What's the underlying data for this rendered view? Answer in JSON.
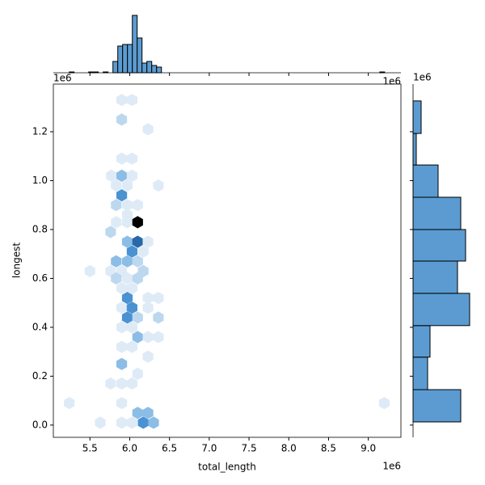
{
  "chart_data": [
    {
      "type": "hexbin",
      "xlabel": "total_length",
      "ylabel": "longest",
      "x_offset_label": "1e6",
      "y_offset_label": "1e6",
      "xlim": [
        5.04,
        9.41
      ],
      "ylim": [
        -0.05,
        1.395
      ],
      "xticks": [
        5.5,
        {
          "value": 6,
          "label": "6.0"
        },
        6.5,
        {
          "value": 7,
          "label": "7.0"
        },
        7.5,
        {
          "value": 8,
          "label": "8.0"
        },
        8.5,
        {
          "value": 9,
          "label": "9.0"
        }
      ],
      "yticks": [
        {
          "value": 0,
          "label": "0.0"
        },
        0.2,
        0.4,
        0.6,
        0.8,
        {
          "value": 1,
          "label": "1.0"
        },
        1.2
      ],
      "cmap": [
        "#deebf7",
        "#bcd8ef",
        "#8cbde6",
        "#4a92d2",
        "#2868a8",
        "#000000"
      ],
      "x": [
        5.9,
        6.03,
        5.9,
        6.23,
        5.9,
        6.03,
        5.77,
        5.9,
        6.03,
        5.83,
        5.97,
        6.36,
        5.9,
        5.83,
        5.97,
        6.1,
        5.97,
        5.83,
        5.97,
        6.1,
        5.76,
        5.97,
        6.1,
        6.23,
        6.03,
        6.17,
        5.83,
        5.97,
        6.1,
        5.5,
        5.76,
        5.9,
        6.17,
        5.83,
        5.97,
        6.1,
        5.9,
        6.03,
        5.97,
        6.23,
        6.36,
        5.9,
        6.03,
        6.23,
        5.97,
        6.1,
        6.36,
        5.9,
        6.03,
        6.1,
        6.23,
        6.36,
        5.9,
        6.03,
        6.23,
        5.9,
        6.1,
        5.76,
        5.9,
        6.03,
        5.24,
        5.9,
        9.2,
        6.1,
        6.23,
        5.63,
        5.9,
        6.03,
        6.17,
        6.3
      ],
      "y": [
        1.33,
        1.33,
        1.25,
        1.21,
        1.09,
        1.09,
        1.02,
        1.02,
        1.02,
        0.98,
        0.98,
        0.98,
        0.94,
        0.9,
        0.9,
        0.9,
        0.86,
        0.83,
        0.83,
        0.83,
        0.79,
        0.75,
        0.75,
        0.75,
        0.71,
        0.71,
        0.67,
        0.67,
        0.67,
        0.63,
        0.63,
        0.63,
        0.63,
        0.6,
        0.6,
        0.6,
        0.56,
        0.56,
        0.52,
        0.52,
        0.52,
        0.48,
        0.48,
        0.48,
        0.44,
        0.44,
        0.44,
        0.4,
        0.4,
        0.36,
        0.36,
        0.36,
        0.32,
        0.32,
        0.28,
        0.25,
        0.21,
        0.17,
        0.17,
        0.17,
        0.09,
        0.09,
        0.09,
        0.05,
        0.05,
        0.01,
        0.01,
        0.01,
        0.01,
        0.01
      ],
      "counts": [
        1,
        1,
        2,
        1,
        1,
        1,
        1,
        3,
        1,
        1,
        1,
        1,
        4,
        2,
        1,
        1,
        1,
        1,
        1,
        6,
        2,
        3,
        5,
        1,
        4,
        1,
        3,
        3,
        2,
        1,
        1,
        1,
        2,
        2,
        1,
        2,
        1,
        1,
        4,
        1,
        1,
        1,
        4,
        1,
        4,
        2,
        2,
        1,
        1,
        3,
        1,
        1,
        1,
        1,
        1,
        3,
        1,
        1,
        1,
        1,
        1,
        1,
        1,
        3,
        3,
        1,
        1,
        1,
        4,
        3
      ]
    },
    {
      "type": "histogram",
      "color": "#5b9bd1",
      "ylim": [
        0,
        72
      ],
      "bins": [
        5.24,
        5.301,
        5.362,
        5.423,
        5.484,
        5.545,
        5.606,
        5.667,
        5.728,
        5.789,
        5.85,
        5.911,
        5.972,
        6.033,
        6.094,
        6.155,
        6.216,
        6.277,
        6.338,
        6.399,
        6.46,
        6.521,
        6.582,
        6.643,
        6.704,
        6.765,
        6.826,
        6.887,
        6.948,
        7.009,
        7.07,
        7.131,
        7.192,
        7.253,
        7.314,
        7.375,
        7.436,
        7.497,
        7.558,
        7.619,
        7.68,
        7.741,
        7.802,
        7.863,
        7.924,
        7.985,
        8.046,
        8.107,
        8.168,
        8.229,
        8.29,
        8.351,
        8.412,
        8.473,
        8.534,
        8.595,
        8.656,
        8.717,
        8.778,
        8.839,
        8.9,
        8.961,
        9.022,
        9.083,
        9.144,
        9.205
      ],
      "counts": [
        1,
        0,
        0,
        0,
        1,
        1,
        0,
        1,
        0,
        14,
        33,
        35,
        35,
        71,
        43,
        12,
        14,
        9,
        7,
        0,
        0,
        0,
        0,
        0,
        0,
        0,
        0,
        0,
        0,
        0,
        0,
        0,
        0,
        0,
        0,
        0,
        0,
        0,
        0,
        0,
        0,
        0,
        0,
        0,
        0,
        0,
        0,
        0,
        0,
        0,
        0,
        0,
        0,
        0,
        0,
        0,
        0,
        0,
        0,
        0,
        0,
        0,
        0,
        0,
        1
      ]
    },
    {
      "type": "histogram",
      "orientation": "horizontal",
      "color": "#5b9bd1",
      "xlim": [
        0,
        72
      ],
      "bins": [
        0.013,
        0.145,
        0.278,
        0.407,
        0.539,
        0.671,
        0.8,
        0.932,
        1.064,
        1.193,
        1.326
      ],
      "counts": [
        59,
        18,
        21,
        70,
        55,
        65,
        59,
        31,
        4,
        10
      ]
    }
  ]
}
